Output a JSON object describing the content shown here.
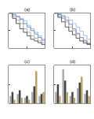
{
  "chart_data": [
    {
      "type": "line",
      "title": "(a)",
      "x": [
        0,
        1,
        2,
        3,
        4,
        5,
        6,
        7,
        8,
        9,
        10
      ],
      "xlim": [
        0,
        10
      ],
      "xticks": [
        0,
        5,
        10
      ],
      "ylim": [
        0,
        1
      ],
      "yticks": [
        0,
        0.5,
        1
      ],
      "grid": false,
      "tick_labels": false,
      "series": [
        {
          "color": "#4a6fb5",
          "values": [
            1,
            0.95,
            0.9,
            0.82,
            0.7,
            0.6,
            0.5,
            0.4,
            0.3,
            0.22,
            0.15
          ]
        },
        {
          "color": "#999999",
          "values": [
            1,
            0.9,
            0.8,
            0.7,
            0.55,
            0.45,
            0.35,
            0.28,
            0.2,
            0.15,
            0.1
          ]
        },
        {
          "color": "#333333",
          "values": [
            1,
            0.85,
            0.7,
            0.55,
            0.45,
            0.35,
            0.25,
            0.2,
            0.15,
            0.1,
            0.08
          ]
        },
        {
          "color": "#8fb0d8",
          "values": [
            1,
            0.97,
            0.92,
            0.85,
            0.78,
            0.65,
            0.55,
            0.45,
            0.35,
            0.25,
            0.2
          ]
        }
      ]
    },
    {
      "type": "line",
      "title": "(b)",
      "x": [
        0,
        1,
        2,
        3,
        4,
        5,
        6,
        7,
        8,
        9,
        10
      ],
      "xlim": [
        0,
        10
      ],
      "xticks": [
        0,
        5,
        10
      ],
      "ylim": [
        0,
        1
      ],
      "yticks": [
        0,
        0.5,
        1
      ],
      "grid": false,
      "tick_labels": false,
      "series": [
        {
          "color": "#4a6fb5",
          "values": [
            1,
            0.96,
            0.9,
            0.8,
            0.68,
            0.55,
            0.42,
            0.3,
            0.2,
            0.12,
            0.08
          ]
        },
        {
          "color": "#999999",
          "values": [
            1,
            0.92,
            0.85,
            0.75,
            0.6,
            0.5,
            0.4,
            0.3,
            0.22,
            0.15,
            0.1
          ]
        },
        {
          "color": "#333333",
          "values": [
            1,
            0.88,
            0.75,
            0.6,
            0.48,
            0.38,
            0.28,
            0.2,
            0.14,
            0.1,
            0.06
          ]
        },
        {
          "color": "#8fb0d8",
          "values": [
            1,
            0.98,
            0.94,
            0.88,
            0.8,
            0.7,
            0.6,
            0.48,
            0.36,
            0.25,
            0.18
          ]
        }
      ]
    },
    {
      "type": "bar",
      "title": "(c)",
      "categories": [
        null,
        null,
        null,
        null,
        null
      ],
      "ylim": [
        0,
        1
      ],
      "yticks": [
        0,
        0.5,
        1
      ],
      "grid": false,
      "tick_labels": false,
      "series": [
        {
          "color": "#aaaaaa",
          "values": [
            0.2,
            0.25,
            0.15,
            0.3,
            0.2
          ]
        },
        {
          "color": "#444444",
          "values": [
            0.3,
            0.35,
            0.2,
            0.45,
            0.25
          ]
        },
        {
          "color": "#b5a36a",
          "values": [
            0.1,
            0.15,
            0.1,
            0.85,
            0.3
          ]
        }
      ]
    },
    {
      "type": "bar",
      "title": "(d)",
      "categories": [
        null,
        null,
        null,
        null,
        null
      ],
      "ylim": [
        0,
        1
      ],
      "yticks": [
        0,
        0.5,
        1
      ],
      "grid": false,
      "tick_labels": false,
      "series": [
        {
          "color": "#aaaaaa",
          "values": [
            0.3,
            0.9,
            0.2,
            0.4,
            0.25
          ]
        },
        {
          "color": "#444444",
          "values": [
            0.5,
            0.6,
            0.3,
            0.55,
            0.35
          ]
        },
        {
          "color": "#b5a36a",
          "values": [
            0.2,
            0.3,
            0.15,
            0.7,
            0.2
          ]
        }
      ]
    }
  ]
}
